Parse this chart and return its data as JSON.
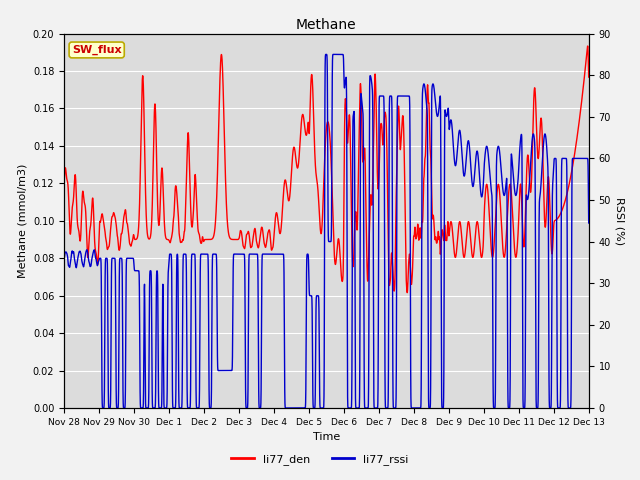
{
  "title": "Methane",
  "ylabel_left": "Methane (mmol/m3)",
  "ylabel_right": "RSSI (%)",
  "xlabel": "Time",
  "ylim_left": [
    0.0,
    0.2
  ],
  "ylim_right": [
    0,
    90
  ],
  "yticks_left": [
    0.0,
    0.02,
    0.04,
    0.06,
    0.08,
    0.1,
    0.12,
    0.14,
    0.16,
    0.18,
    0.2
  ],
  "yticks_right": [
    0,
    10,
    20,
    30,
    40,
    50,
    60,
    70,
    80,
    90
  ],
  "color_red": "#FF0000",
  "color_blue": "#0000CC",
  "bg_color": "#DCDCDC",
  "fig_bg_color": "#F2F2F2",
  "sw_flux_label": "SW_flux",
  "sw_flux_bg": "#FFFFCC",
  "sw_flux_border": "#BBAA00",
  "sw_flux_text_color": "#CC0000",
  "legend_red_label": "li77_den",
  "legend_blue_label": "li77_rssi",
  "grid_color": "#FFFFFF",
  "linewidth": 1.0
}
